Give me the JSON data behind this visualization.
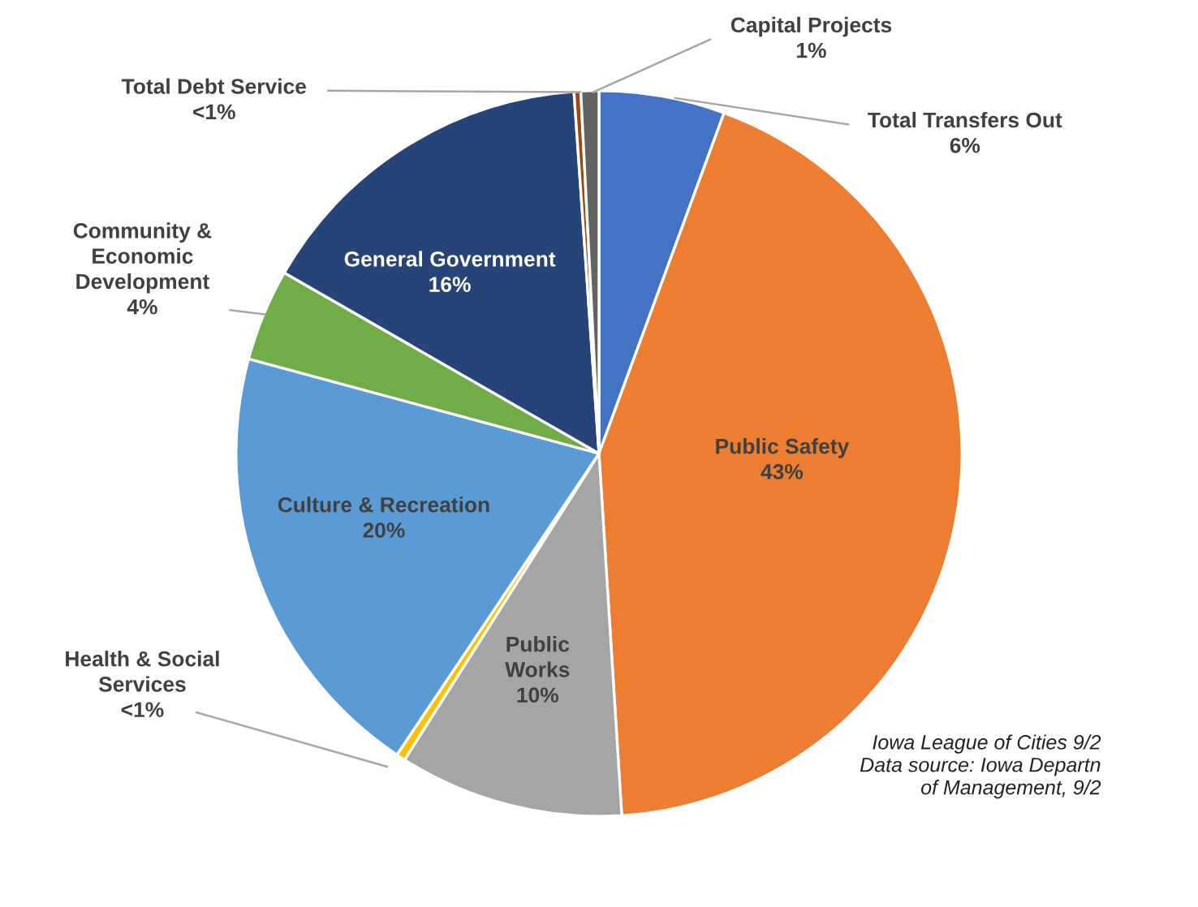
{
  "chart_data": {
    "type": "pie",
    "categories": [
      "Total Transfers Out",
      "Public Safety",
      "Public Works",
      "Health & Social Services",
      "Culture & Recreation",
      "Community & Economic Development",
      "General Government",
      "Total Debt Service",
      "Capital Projects"
    ],
    "values": [
      5.6,
      43.4,
      10.0,
      0.4,
      19.8,
      4.1,
      15.6,
      0.3,
      0.8
    ],
    "colors": [
      "#4472c4",
      "#ed7d31",
      "#a5a5a5",
      "#ffc000",
      "#5b9bd5",
      "#70ad47",
      "#264478",
      "#9e480e",
      "#636363"
    ],
    "value_labels": [
      "6%",
      "43%",
      "10%",
      "<1%",
      "20%",
      "4%",
      "16%",
      "<1%",
      "1%"
    ],
    "annotations": [
      "Iowa League of Cities 9/2\nData source: Iowa Departn\nof Management, 9/2"
    ]
  }
}
